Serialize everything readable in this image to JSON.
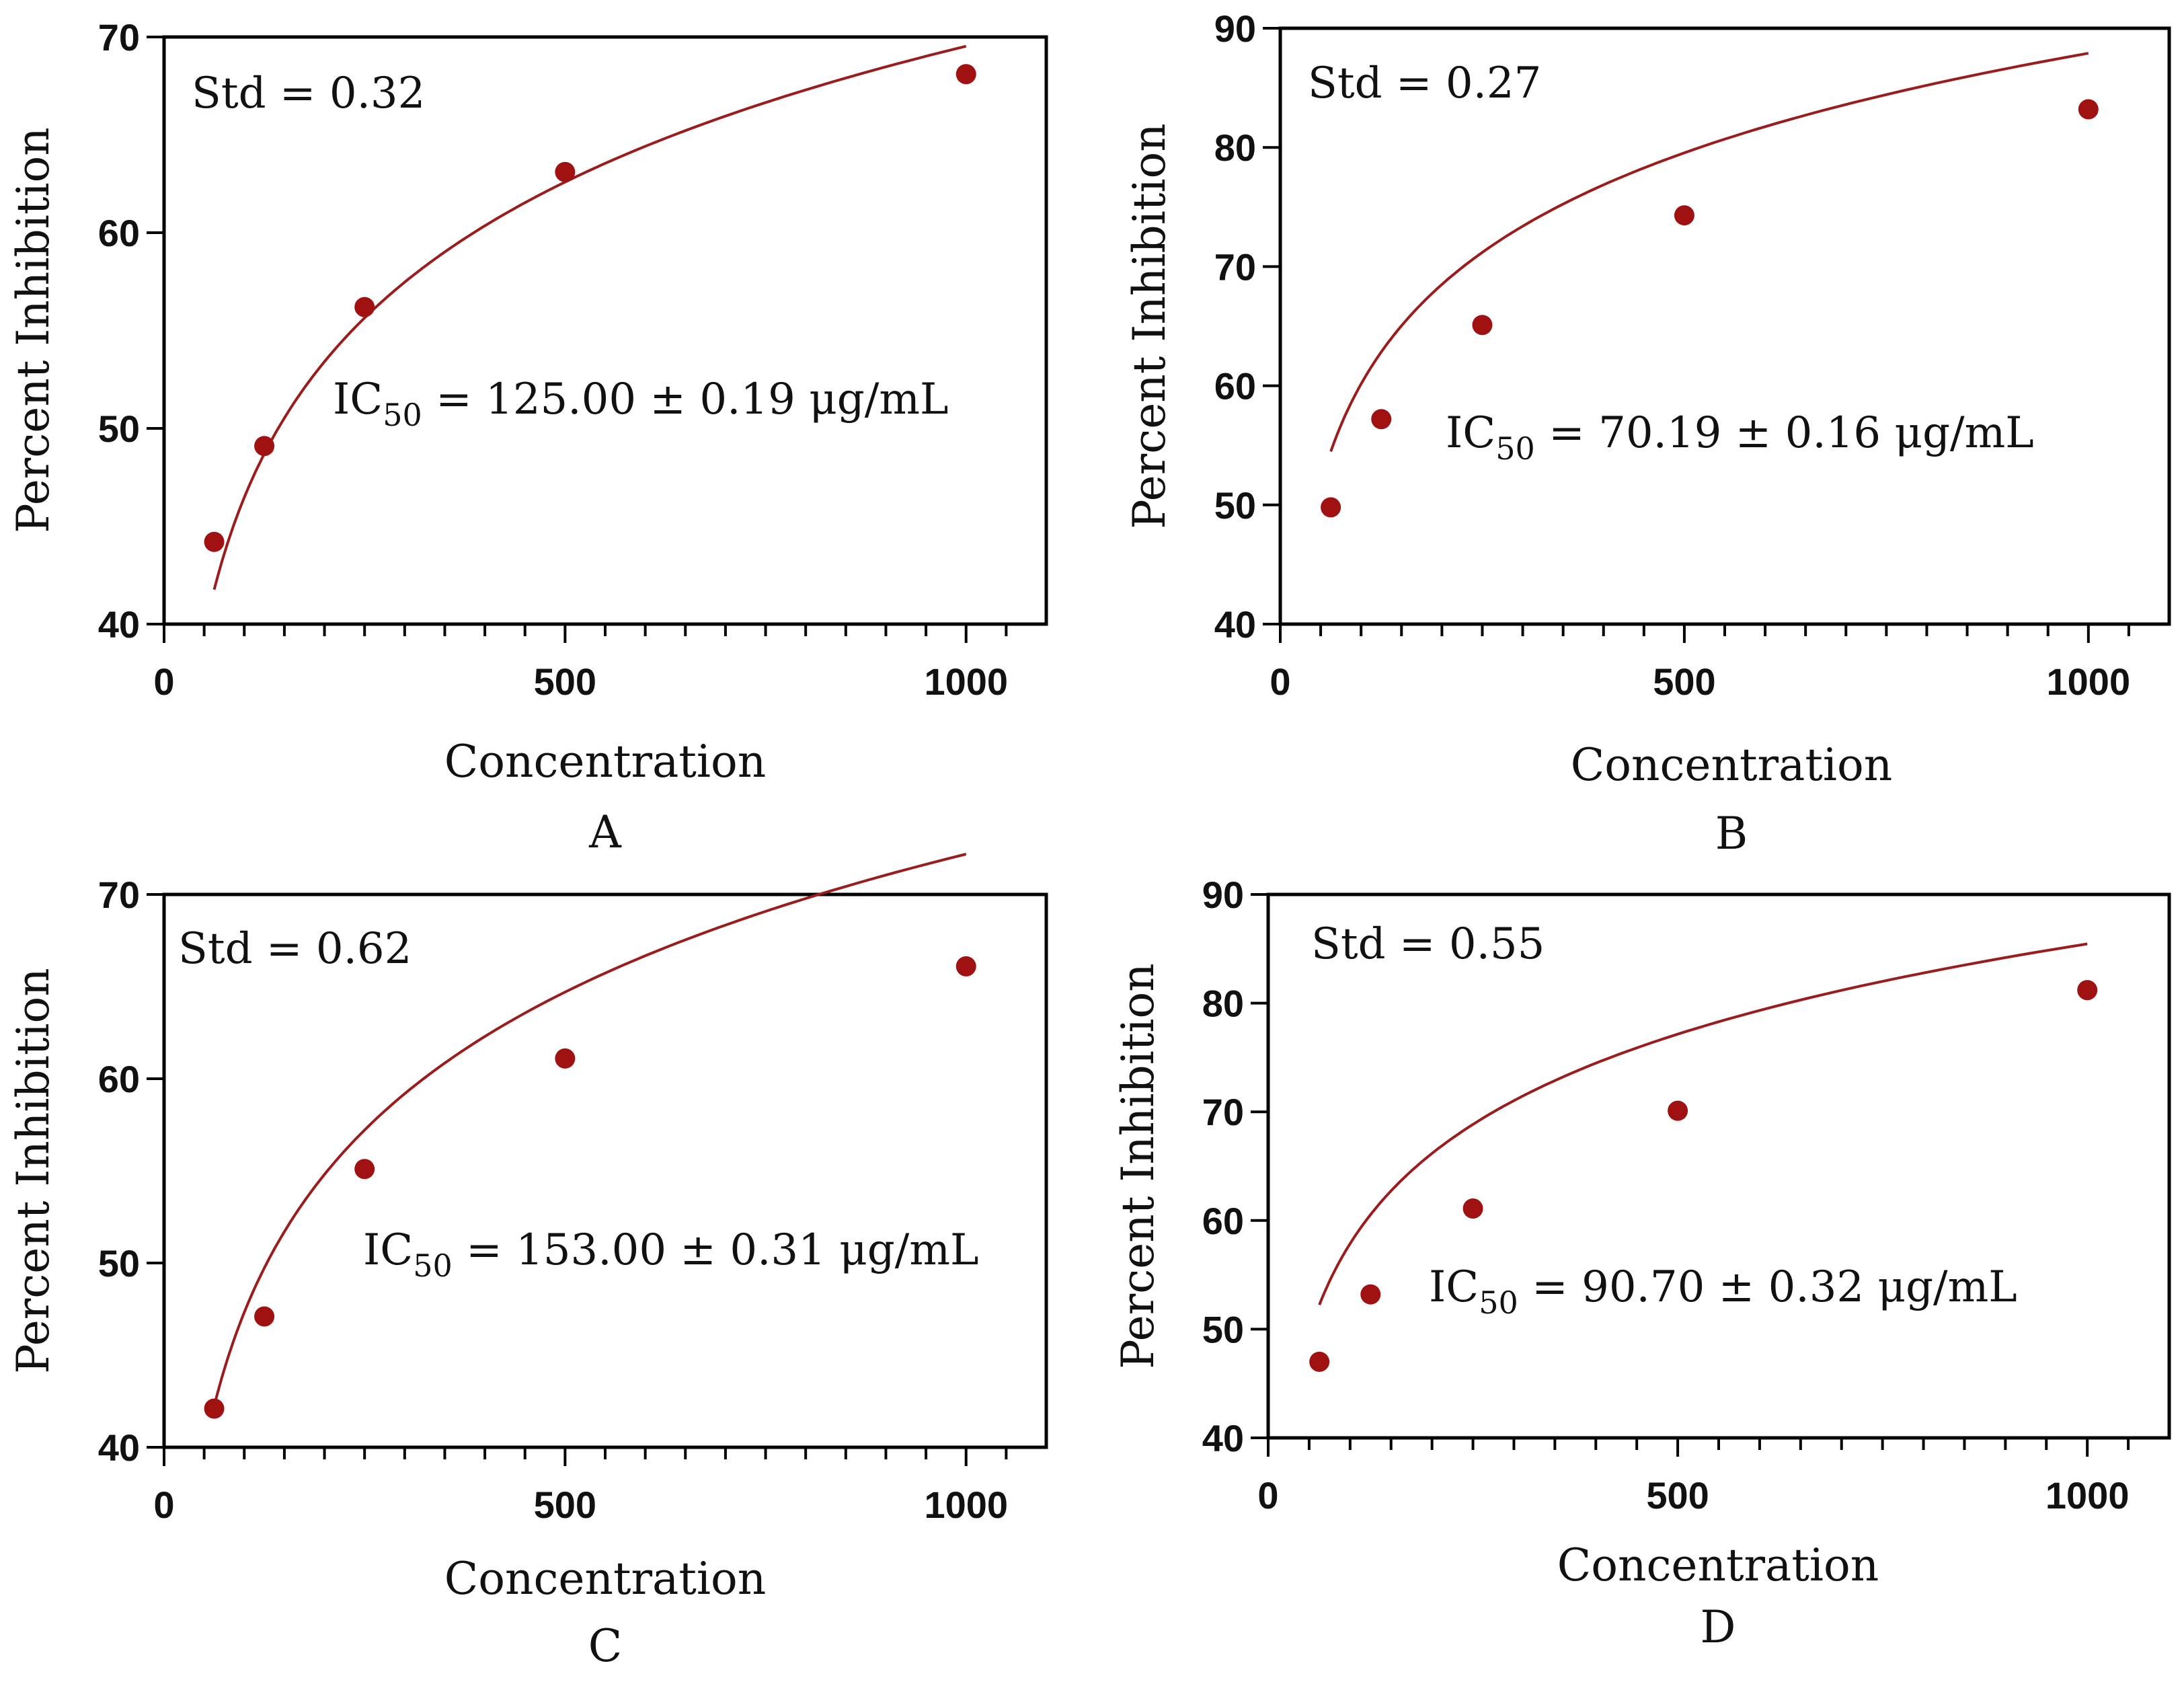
{
  "colors": {
    "marker": "#a01212",
    "curve": "#9b1c1c",
    "axis": "#000000",
    "text": "#111111"
  },
  "chart_data": [
    {
      "type": "scatter",
      "panel_label": "A",
      "xlabel": "Concentration",
      "ylabel": "Percent Inhibition",
      "xlim": [
        0,
        1100
      ],
      "ylim": [
        40,
        70
      ],
      "x_ticks": [
        "0",
        "500",
        "1000"
      ],
      "y_ticks": [
        "40",
        "50",
        "60",
        "70"
      ],
      "series": [
        {
          "name": "measured",
          "x": [
            62.5,
            125,
            250,
            500,
            1000
          ],
          "y": [
            44.2,
            49.1,
            56.2,
            63.1,
            68.1
          ]
        }
      ],
      "fit": {
        "name": "log fit",
        "x_start": 62.5,
        "x_end": 1000,
        "a": 0.35,
        "b": 23.06
      },
      "std_text": "Std = 0.32",
      "ic50": {
        "prefix": "IC",
        "subscript": "50",
        "text": " = 125.00 ± 0.19 μg/mL"
      }
    },
    {
      "type": "scatter",
      "panel_label": "B",
      "xlabel": "Concentration",
      "ylabel": "Percent Inhibition",
      "xlim": [
        0,
        1100
      ],
      "ylim": [
        40,
        90
      ],
      "x_ticks": [
        "0",
        "500",
        "1000"
      ],
      "y_ticks": [
        "40",
        "50",
        "60",
        "70",
        "80",
        "90"
      ],
      "series": [
        {
          "name": "measured",
          "x": [
            62.5,
            125,
            250,
            500,
            1000
          ],
          "y": [
            49.8,
            57.2,
            65.1,
            74.3,
            83.2
          ]
        }
      ],
      "fit": {
        "name": "log fit",
        "x_start": 62.5,
        "x_end": 1000,
        "a": 4.65,
        "b": 27.75
      },
      "std_text": "Std = 0.27",
      "ic50": {
        "prefix": "IC",
        "subscript": "50",
        "text": " = 70.19 ± 0.16 μg/mL"
      }
    },
    {
      "type": "scatter",
      "panel_label": "C",
      "xlabel": "Concentration",
      "ylabel": "Percent Inhibition",
      "xlim": [
        0,
        1100
      ],
      "ylim": [
        40,
        70
      ],
      "x_ticks": [
        "0",
        "500",
        "1000"
      ],
      "y_ticks": [
        "40",
        "50",
        "60",
        "70"
      ],
      "series": [
        {
          "name": "measured",
          "x": [
            62.5,
            125,
            250,
            500,
            1000
          ],
          "y": [
            42.1,
            47.1,
            55.1,
            61.1,
            66.1
          ]
        }
      ],
      "fit": {
        "name": "log fit",
        "x_start": 62.5,
        "x_end": 1000,
        "a": -2.42,
        "b": 24.87
      },
      "std_text": "Std = 0.62",
      "ic50": {
        "prefix": "IC",
        "subscript": "50",
        "text": " = 153.00 ± 0.31 μg/mL"
      }
    },
    {
      "type": "scatter",
      "panel_label": "D",
      "xlabel": "Concentration",
      "ylabel": "Percent Inhibition",
      "xlim": [
        0,
        1100
      ],
      "ylim": [
        40,
        90
      ],
      "x_ticks": [
        "0",
        "500",
        "1000"
      ],
      "y_ticks": [
        "40",
        "50",
        "60",
        "70",
        "80",
        "90"
      ],
      "series": [
        {
          "name": "measured",
          "x": [
            62.5,
            125,
            250,
            500,
            1000
          ],
          "y": [
            47.0,
            53.2,
            61.1,
            70.1,
            81.2
          ]
        }
      ],
      "fit": {
        "name": "log fit",
        "x_start": 62.5,
        "x_end": 1000,
        "a": 2.71,
        "b": 27.58
      },
      "std_text": "Std = 0.55",
      "ic50": {
        "prefix": "IC",
        "subscript": "50",
        "text": " = 90.70 ± 0.32 μg/mL"
      }
    }
  ]
}
